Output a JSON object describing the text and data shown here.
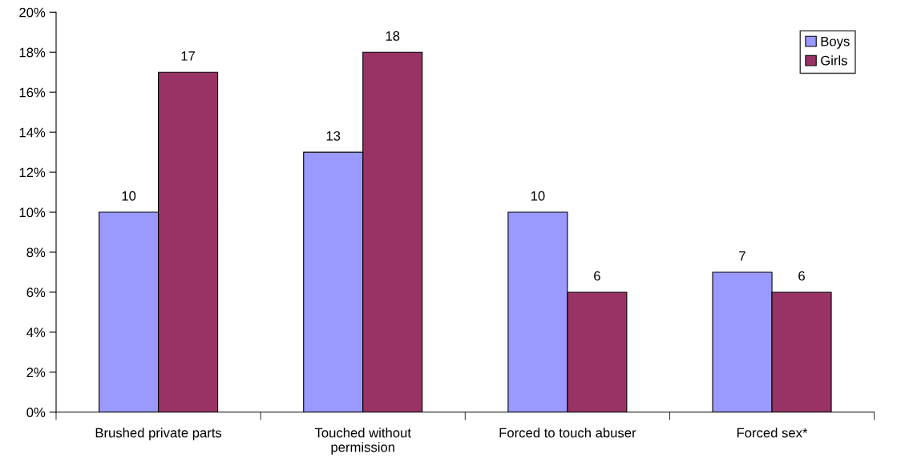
{
  "chart_data": {
    "type": "bar",
    "categories": [
      "Brushed private parts",
      "Touched without\npermission",
      "Forced to touch abuser",
      "Forced sex*"
    ],
    "series": [
      {
        "name": "Boys",
        "color": "#9999ff",
        "values": [
          10,
          13,
          10,
          7
        ]
      },
      {
        "name": "Girls",
        "color": "#993366",
        "values": [
          17,
          18,
          6,
          6
        ]
      }
    ],
    "ylim": [
      0,
      20
    ],
    "yticks": [
      {
        "value": 0,
        "label": "0%"
      },
      {
        "value": 2,
        "label": "2%"
      },
      {
        "value": 4,
        "label": "4%"
      },
      {
        "value": 6,
        "label": "6%"
      },
      {
        "value": 8,
        "label": "8%"
      },
      {
        "value": 10,
        "label": "10%"
      },
      {
        "value": 12,
        "label": "12%"
      },
      {
        "value": 14,
        "label": "14%"
      },
      {
        "value": 16,
        "label": "16%"
      },
      {
        "value": 18,
        "label": "18%"
      },
      {
        "value": 20,
        "label": "20%"
      }
    ],
    "data_labels": true,
    "grid": false,
    "legend": "top right"
  }
}
